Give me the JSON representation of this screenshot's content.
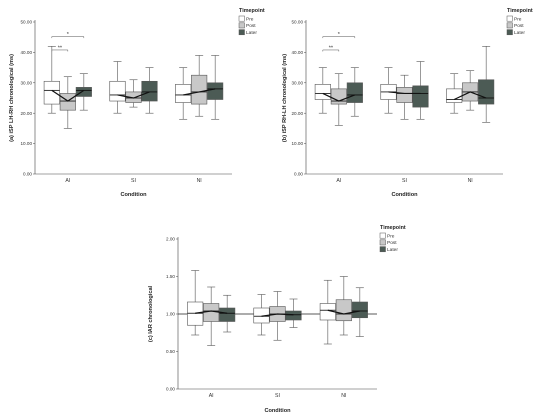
{
  "chart_data": [
    {
      "type": "boxplot",
      "panel": "a",
      "ylabel": "(a)  iSP LH-RH chronological (ms)",
      "xlabel": "Condition",
      "ylim": [
        0,
        50
      ],
      "yticks": [
        "0.00",
        "10.00",
        "20.00",
        "30.00",
        "40.00",
        "50.00"
      ],
      "ytick_values": [
        0,
        10,
        20,
        30,
        40,
        50
      ],
      "categories": [
        "AI",
        "SI",
        "NI"
      ],
      "legend": {
        "title": "Timepoint",
        "items": [
          "Pre",
          "Post",
          "Later"
        ]
      },
      "series": [
        {
          "name": "Pre",
          "boxes": [
            {
              "min": 20,
              "q1": 23,
              "median": 27.5,
              "q3": 30.5,
              "max": 42
            },
            {
              "min": 20,
              "q1": 24,
              "median": 26,
              "q3": 30.5,
              "max": 37
            },
            {
              "min": 18,
              "q1": 23.5,
              "median": 26,
              "q3": 29.5,
              "max": 35
            }
          ]
        },
        {
          "name": "Post",
          "boxes": [
            {
              "min": 15,
              "q1": 21,
              "median": 24,
              "q3": 26.5,
              "max": 32
            },
            {
              "min": 22,
              "q1": 23.5,
              "median": 25,
              "q3": 27,
              "max": 31
            },
            {
              "min": 19,
              "q1": 23,
              "median": 27,
              "q3": 32.5,
              "max": 39
            }
          ]
        },
        {
          "name": "Later",
          "boxes": [
            {
              "min": 21,
              "q1": 25.5,
              "median": 27.5,
              "q3": 28.5,
              "max": 33
            },
            {
              "min": 20,
              "q1": 24,
              "median": 27,
              "q3": 30.5,
              "max": 35
            },
            {
              "min": 18,
              "q1": 24.5,
              "median": 28,
              "q3": 30,
              "max": 39
            }
          ]
        }
      ],
      "significance": [
        {
          "label": "*",
          "from": "Pre",
          "to": "Later",
          "category": "AI"
        },
        {
          "label": "**",
          "from": "Pre",
          "to": "Post",
          "category": "AI"
        }
      ]
    },
    {
      "type": "boxplot",
      "panel": "b",
      "ylabel": "(b)  iSP RH-LH chronological (ms)",
      "xlabel": "Condition",
      "ylim": [
        0,
        50
      ],
      "yticks": [
        "0.00",
        "10.00",
        "20.00",
        "30.00",
        "40.00",
        "50.00"
      ],
      "ytick_values": [
        0,
        10,
        20,
        30,
        40,
        50
      ],
      "categories": [
        "AI",
        "SI",
        "NI"
      ],
      "legend": {
        "title": "Timepoint",
        "items": [
          "Pre",
          "Post",
          "Later"
        ]
      },
      "series": [
        {
          "name": "Pre",
          "boxes": [
            {
              "min": 20,
              "q1": 24.5,
              "median": 26.5,
              "q3": 29.5,
              "max": 35
            },
            {
              "min": 20,
              "q1": 24.5,
              "median": 27,
              "q3": 29.5,
              "max": 35
            },
            {
              "min": 20,
              "q1": 23.5,
              "median": 24.5,
              "q3": 28,
              "max": 33
            }
          ]
        },
        {
          "name": "Post",
          "boxes": [
            {
              "min": 16,
              "q1": 23,
              "median": 24,
              "q3": 28,
              "max": 33
            },
            {
              "min": 18,
              "q1": 23.5,
              "median": 26.5,
              "q3": 28.5,
              "max": 32.5
            },
            {
              "min": 21,
              "q1": 24,
              "median": 27,
              "q3": 30,
              "max": 34
            }
          ]
        },
        {
          "name": "Later",
          "boxes": [
            {
              "min": 19,
              "q1": 23.5,
              "median": 26,
              "q3": 30,
              "max": 35
            },
            {
              "min": 18,
              "q1": 22,
              "median": 26.5,
              "q3": 29,
              "max": 37
            },
            {
              "min": 17,
              "q1": 23,
              "median": 25,
              "q3": 31,
              "max": 42
            }
          ]
        }
      ],
      "significance": [
        {
          "label": "*",
          "from": "Pre",
          "to": "Later",
          "category": "AI"
        },
        {
          "label": "**",
          "from": "Pre",
          "to": "Post",
          "category": "AI"
        }
      ]
    },
    {
      "type": "boxplot",
      "panel": "c",
      "ylabel": "(c)  IAR chronological",
      "xlabel": "Condition",
      "ylim": [
        0,
        2
      ],
      "yticks": [
        "0.00",
        "0.50",
        "1.00",
        "1.50",
        "2.00"
      ],
      "ytick_values": [
        0,
        0.5,
        1,
        1.5,
        2
      ],
      "reference_line": 1.0,
      "categories": [
        "AI",
        "SI",
        "NI"
      ],
      "legend": {
        "title": "Timepoint",
        "items": [
          "Pre",
          "Post",
          "Later"
        ]
      },
      "series": [
        {
          "name": "Pre",
          "boxes": [
            {
              "min": 0.72,
              "q1": 0.85,
              "median": 1.01,
              "q3": 1.16,
              "max": 1.58
            },
            {
              "min": 0.72,
              "q1": 0.88,
              "median": 0.97,
              "q3": 1.08,
              "max": 1.26
            },
            {
              "min": 0.6,
              "q1": 0.92,
              "median": 1.05,
              "q3": 1.14,
              "max": 1.45
            }
          ]
        },
        {
          "name": "Post",
          "boxes": [
            {
              "min": 0.58,
              "q1": 0.9,
              "median": 1.04,
              "q3": 1.14,
              "max": 1.36
            },
            {
              "min": 0.65,
              "q1": 0.9,
              "median": 1.0,
              "q3": 1.1,
              "max": 1.3
            },
            {
              "min": 0.72,
              "q1": 0.91,
              "median": 1.0,
              "q3": 1.19,
              "max": 1.5
            }
          ]
        },
        {
          "name": "Later",
          "boxes": [
            {
              "min": 0.76,
              "q1": 0.9,
              "median": 1.01,
              "q3": 1.08,
              "max": 1.25
            },
            {
              "min": 0.82,
              "q1": 0.92,
              "median": 0.99,
              "q3": 1.04,
              "max": 1.2
            },
            {
              "min": 0.7,
              "q1": 0.95,
              "median": 1.04,
              "q3": 1.16,
              "max": 1.35
            }
          ]
        }
      ]
    }
  ],
  "colors": {
    "Pre": "#ffffff",
    "Post": "#c8c8c8",
    "Later": "#4c5b55",
    "stroke": "#555555"
  }
}
